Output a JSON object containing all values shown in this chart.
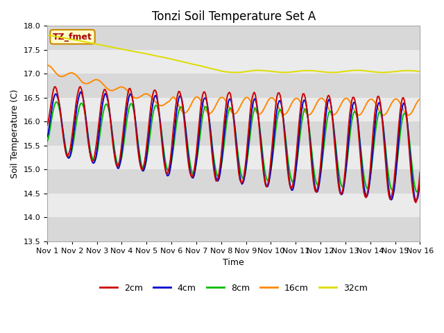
{
  "title": "Tonzi Soil Temperature Set A",
  "xlabel": "Time",
  "ylabel": "Soil Temperature (C)",
  "ylim": [
    13.5,
    18.0
  ],
  "xlim": [
    0,
    360
  ],
  "yticks": [
    13.5,
    14.0,
    14.5,
    15.0,
    15.5,
    16.0,
    16.5,
    17.0,
    17.5,
    18.0
  ],
  "xtick_positions": [
    0,
    24,
    48,
    72,
    96,
    120,
    144,
    168,
    192,
    216,
    240,
    264,
    288,
    312,
    336,
    360
  ],
  "xtick_labels": [
    "Nov 1",
    "Nov 2",
    "Nov 3",
    "Nov 4",
    "Nov 5",
    "Nov 6",
    "Nov 7",
    "Nov 8",
    "Nov 9",
    "Nov 10",
    "Nov 11",
    "Nov 12",
    "Nov 13",
    "Nov 14",
    "Nov 15",
    "Nov 16"
  ],
  "colors": {
    "2cm": "#cc0000",
    "4cm": "#0000cc",
    "8cm": "#00bb00",
    "16cm": "#ff8800",
    "32cm": "#dddd00"
  },
  "label_box": "TZ_fmet",
  "label_box_bg": "#ffffcc",
  "label_box_edge": "#cc8800",
  "label_box_text": "#aa0000",
  "bg_color": "#ffffff",
  "band_light": "#ebebeb",
  "band_dark": "#d8d8d8",
  "title_fontsize": 12,
  "axis_label_fontsize": 9,
  "tick_fontsize": 8
}
